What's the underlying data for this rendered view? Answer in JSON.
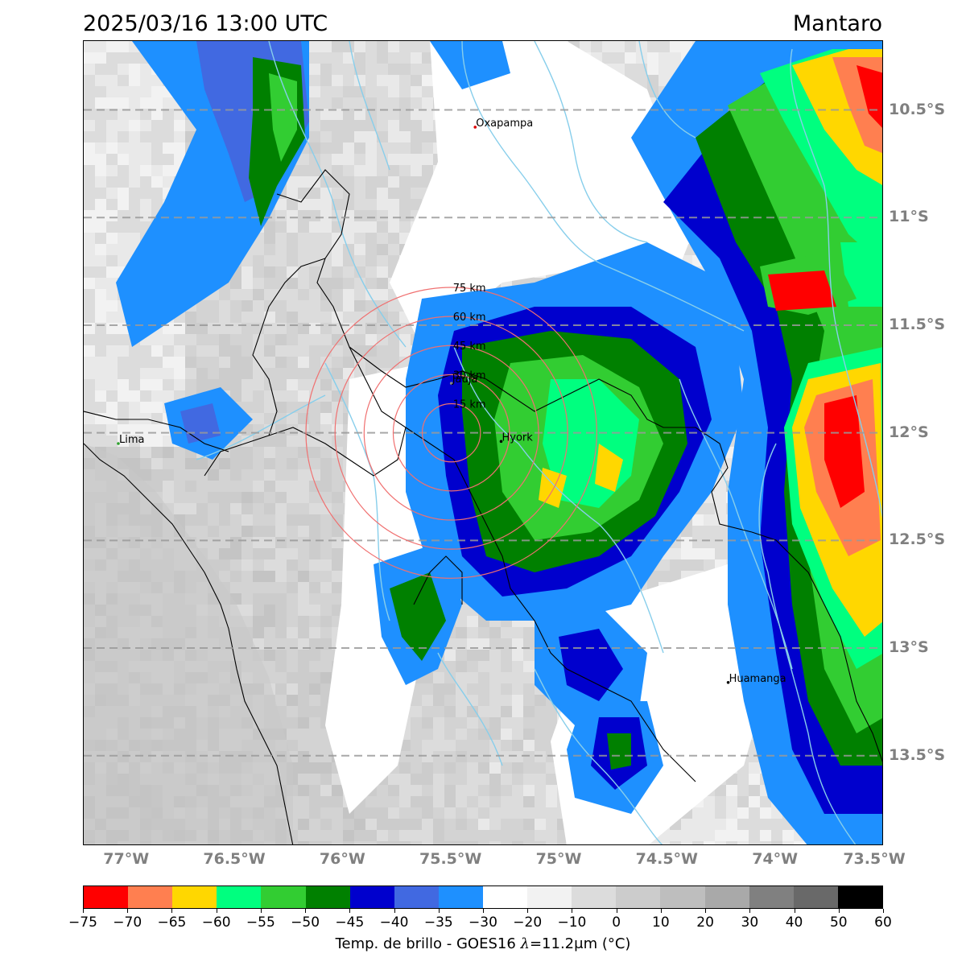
{
  "header": {
    "datetime": "2025/03/16 13:00 UTC",
    "region": "Mantaro"
  },
  "map": {
    "lat_labels": [
      "10.5°S",
      "11°S",
      "11.5°S",
      "12°S",
      "12.5°S",
      "13°S",
      "13.5°S"
    ],
    "lat_values": [
      -10.5,
      -11,
      -11.5,
      -12,
      -12.5,
      -13,
      -13.5
    ],
    "lon_labels": [
      "77°W",
      "76.5°W",
      "76°W",
      "75.5°W",
      "75°W",
      "74.5°W",
      "74°W",
      "73.5°W"
    ],
    "lon_values": [
      -77,
      -76.5,
      -76,
      -75.5,
      -75,
      -74.5,
      -74,
      -73.5
    ],
    "cities": [
      {
        "name": "Oxapampa",
        "lon": -75.39,
        "lat": -10.58,
        "color": "#dd0000"
      },
      {
        "name": "Jauja",
        "lon": -75.5,
        "lat": -11.77,
        "color": "#888888"
      },
      {
        "name": "Hyork",
        "lon": -75.27,
        "lat": -12.04,
        "color": "#000000"
      },
      {
        "name": "Lima",
        "lon": -77.04,
        "lat": -12.05,
        "color": "#2ca02c"
      },
      {
        "name": "Huamanga",
        "lon": -74.22,
        "lat": -13.16,
        "color": "#000000"
      }
    ],
    "range_rings": {
      "center": {
        "lon": -75.5,
        "lat": -12.0
      },
      "labels": [
        "15 km",
        "30 km",
        "45 km",
        "60 km",
        "75 km"
      ],
      "color": "#f07070"
    }
  },
  "colorbar": {
    "title_prefix": "Temp. de brillo - GOES16 ",
    "title_lambda": "λ",
    "title_suffix": "=11.2μm (°C)",
    "tick_labels": [
      "−75",
      "−70",
      "−65",
      "−60",
      "−55",
      "−50",
      "−45",
      "−40",
      "−35",
      "−30",
      "−20",
      "−10",
      "0",
      "10",
      "20",
      "30",
      "40",
      "50",
      "60"
    ],
    "colors": [
      "#ff0000",
      "#ff7f50",
      "#ffd700",
      "#00ff7f",
      "#32cd32",
      "#008000",
      "#0000cd",
      "#4169e1",
      "#1e90ff",
      "#ffffff",
      "#f2f2f2",
      "#dcdcdc",
      "#cccccc",
      "#bebebe",
      "#a9a9a9",
      "#808080",
      "#696969",
      "#000000"
    ]
  }
}
